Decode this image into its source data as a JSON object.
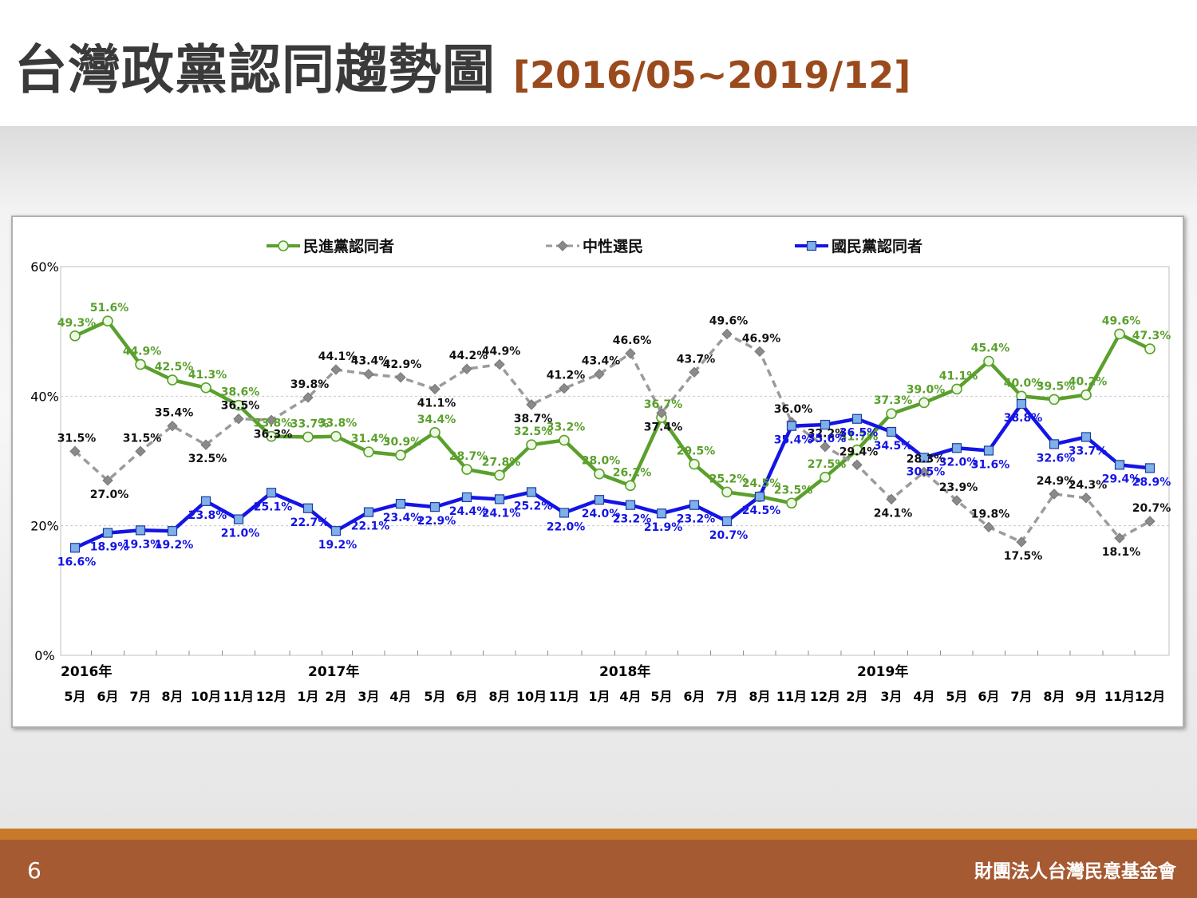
{
  "title": {
    "main": "台灣政黨認同趨勢圖",
    "range": "[2016/05~2019/12]"
  },
  "footer": {
    "page_number": "6",
    "org_name": "財團法人台灣民意基金會"
  },
  "colors": {
    "dpp": "#5aa02c",
    "neutral": "#9b9b9b",
    "kmt": "#1414e6",
    "title_accent": "#9a4a1c",
    "footer": "#a65a32"
  },
  "chart_data": {
    "type": "line",
    "title": "",
    "xlabel": "",
    "ylabel": "",
    "ylim": [
      0,
      60
    ],
    "y_ticks": [
      "0%",
      "20%",
      "40%",
      "60%"
    ],
    "grid": "horizontal dashed",
    "legend_position": "top",
    "categories": [
      "5月",
      "6月",
      "7月",
      "8月",
      "10月",
      "11月",
      "12月",
      "1月",
      "2月",
      "3月",
      "4月",
      "5月",
      "6月",
      "8月",
      "10月",
      "11月",
      "1月",
      "4月",
      "5月",
      "6月",
      "7月",
      "8月",
      "11月",
      "12月",
      "2月",
      "3月",
      "4月",
      "5月",
      "6月",
      "7月",
      "8月",
      "9月",
      "11月",
      "12月"
    ],
    "year_labels": [
      {
        "label": "2016年",
        "at_category": 0
      },
      {
        "label": "2017年",
        "at_category": 7
      },
      {
        "label": "2018年",
        "at_category": 16
      },
      {
        "label": "2019年",
        "at_category": 24
      }
    ],
    "series": [
      {
        "name": "民進黨認同者",
        "color": "#5aa02c",
        "marker": "circle",
        "values": [
          49.3,
          51.6,
          44.9,
          42.5,
          41.3,
          38.6,
          33.8,
          33.7,
          33.8,
          31.4,
          30.9,
          34.4,
          28.7,
          27.8,
          32.5,
          33.2,
          28.0,
          26.2,
          36.7,
          29.5,
          25.2,
          24.5,
          23.5,
          27.5,
          31.7,
          37.3,
          39.0,
          41.1,
          45.4,
          40.0,
          39.5,
          40.2,
          49.6,
          47.3
        ]
      },
      {
        "name": "中性選民",
        "color": "#9b9b9b",
        "marker": "diamond",
        "values": [
          31.5,
          27.0,
          31.5,
          35.4,
          32.5,
          36.5,
          36.3,
          39.8,
          44.1,
          43.4,
          42.9,
          41.1,
          44.2,
          44.9,
          38.7,
          41.2,
          43.4,
          46.6,
          37.4,
          43.7,
          49.6,
          46.9,
          36.0,
          32.2,
          29.4,
          24.1,
          28.3,
          23.9,
          19.8,
          17.5,
          24.9,
          24.3,
          18.1,
          20.7
        ]
      },
      {
        "name": "國民黨認同者",
        "color": "#1414e6",
        "marker": "square",
        "values": [
          16.6,
          18.9,
          19.3,
          19.2,
          23.8,
          21.0,
          25.1,
          22.7,
          19.2,
          22.1,
          23.4,
          22.9,
          24.4,
          24.1,
          25.2,
          22.0,
          24.0,
          23.2,
          21.9,
          23.2,
          20.7,
          24.5,
          35.4,
          35.6,
          36.5,
          34.5,
          30.5,
          32.0,
          31.6,
          38.8,
          32.6,
          33.7,
          29.4,
          28.9
        ]
      }
    ]
  }
}
